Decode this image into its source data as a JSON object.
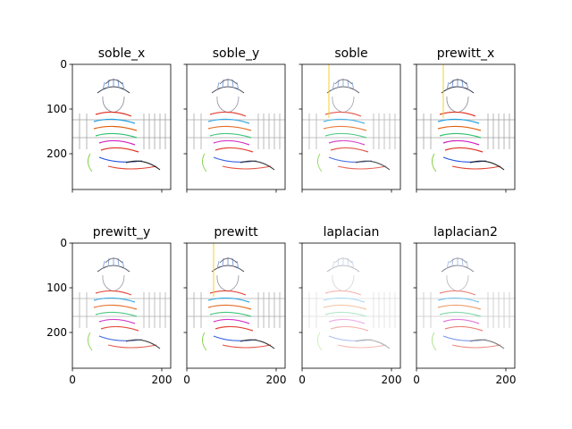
{
  "figure": {
    "panels": [
      {
        "title": "soble_x"
      },
      {
        "title": "soble_y"
      },
      {
        "title": "soble"
      },
      {
        "title": "prewitt_x"
      },
      {
        "title": "prewitt_y"
      },
      {
        "title": "prewitt"
      },
      {
        "title": "laplacian"
      },
      {
        "title": "laplacian2"
      }
    ]
  },
  "chart_data": {
    "type": "image-grid",
    "rows": 2,
    "cols": 4,
    "sharex": true,
    "sharey": true,
    "titles": [
      "soble_x",
      "soble_y",
      "soble",
      "prewitt_x",
      "prewitt_y",
      "prewitt",
      "laplacian",
      "laplacian2"
    ],
    "xlim": [
      0,
      220
    ],
    "ylim": [
      280,
      0
    ],
    "xticks": [
      0,
      200
    ],
    "xtick_labels": [
      "0",
      "200"
    ],
    "yticks": [
      0,
      100,
      200
    ],
    "ytick_labels": [
      "0",
      "100",
      "200"
    ],
    "xticklabels_on_bottom_row_only": true,
    "yticklabels_on_left_column_only": true,
    "grid": false,
    "content": "edge-detection filter outputs of a photo of a child in a striped hat sitting in front of a fence"
  }
}
